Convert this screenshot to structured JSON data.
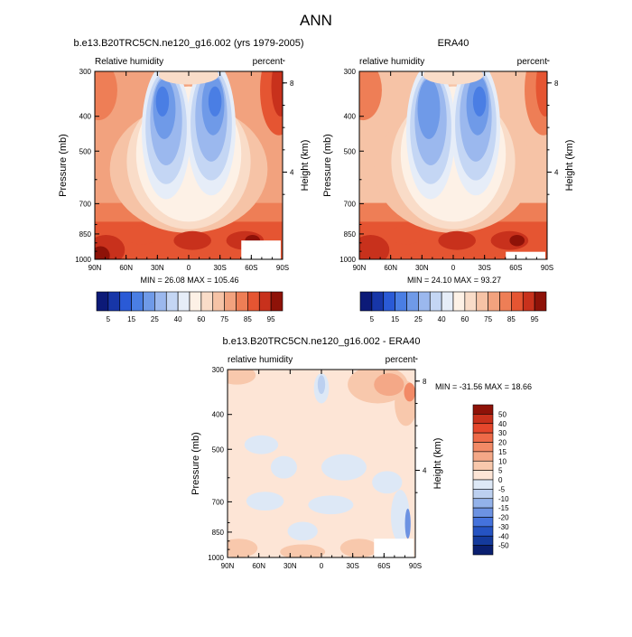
{
  "page": {
    "title": "ANN"
  },
  "chart_data": [
    {
      "type": "contour",
      "title": "b.e13.B20TRC5CN.ne120_g16.002 (yrs 1979-2005)",
      "left_label": "Relative humidity",
      "right_label": "percent",
      "ylabel": "Pressure (mb)",
      "y2label": "Height (km)",
      "xticks": [
        "90N",
        "60N",
        "30N",
        "0",
        "30S",
        "60S",
        "90S"
      ],
      "yticks": [
        "300",
        "400",
        "500",
        "700",
        "850",
        "1000"
      ],
      "y2ticks": [
        "8",
        "4"
      ],
      "stats": "MIN =  26.08  MAX = 105.46",
      "colorbar_levels": [
        "5",
        "15",
        "25",
        "40",
        "60",
        "75",
        "85",
        "95"
      ],
      "colorbar_colors": [
        "#0c1a78",
        "#1736a8",
        "#2a5ad6",
        "#4a7ee4",
        "#6f9ae8",
        "#9bb8ee",
        "#c4d6f4",
        "#e6edf8",
        "#fdf1e6",
        "#f9dcc8",
        "#f6c3a6",
        "#f2a27e",
        "#ee7e56",
        "#e55532",
        "#c8311c",
        "#8e1208"
      ]
    },
    {
      "type": "contour",
      "title": "ERA40",
      "left_label": "relative humidity",
      "right_label": "percent",
      "ylabel": "Pressure (mb)",
      "y2label": "Height (km)",
      "xticks": [
        "90N",
        "60N",
        "30N",
        "0",
        "30S",
        "60S",
        "90S"
      ],
      "yticks": [
        "300",
        "400",
        "500",
        "700",
        "850",
        "1000"
      ],
      "y2ticks": [
        "8",
        "4"
      ],
      "stats": "MIN =  24.10  MAX =  93.27",
      "colorbar_levels": [
        "5",
        "15",
        "25",
        "40",
        "60",
        "75",
        "85",
        "95"
      ],
      "colorbar_colors": [
        "#0c1a78",
        "#1736a8",
        "#2a5ad6",
        "#4a7ee4",
        "#6f9ae8",
        "#9bb8ee",
        "#c4d6f4",
        "#e6edf8",
        "#fdf1e6",
        "#f9dcc8",
        "#f6c3a6",
        "#f2a27e",
        "#ee7e56",
        "#e55532",
        "#c8311c",
        "#8e1208"
      ]
    },
    {
      "type": "contour",
      "title": "b.e13.B20TRC5CN.ne120_g16.002 - ERA40",
      "left_label": "relative humidity",
      "right_label": "percent",
      "ylabel": "Pressure (mb)",
      "y2label": "Height (km)",
      "xticks": [
        "90N",
        "60N",
        "30N",
        "0",
        "30S",
        "60S",
        "90S"
      ],
      "yticks": [
        "300",
        "400",
        "500",
        "700",
        "850",
        "1000"
      ],
      "y2ticks": [
        "8",
        "4"
      ],
      "stats": "MIN = -31.56  MAX =  18.66",
      "colorbar_levels": [
        "50",
        "40",
        "30",
        "20",
        "15",
        "10",
        "5",
        "0",
        "-5",
        "-10",
        "-15",
        "-20",
        "-30",
        "-40",
        "-50"
      ],
      "colorbar_colors": [
        "#8e1208",
        "#c8311c",
        "#e5472c",
        "#ee6a48",
        "#f28a66",
        "#f4a887",
        "#f8c8ac",
        "#fde5d6",
        "#dde8f6",
        "#bcd0f0",
        "#93b2ea",
        "#6c92e2",
        "#4472dc",
        "#2553c2",
        "#143a9c",
        "#0a1f70"
      ]
    }
  ]
}
